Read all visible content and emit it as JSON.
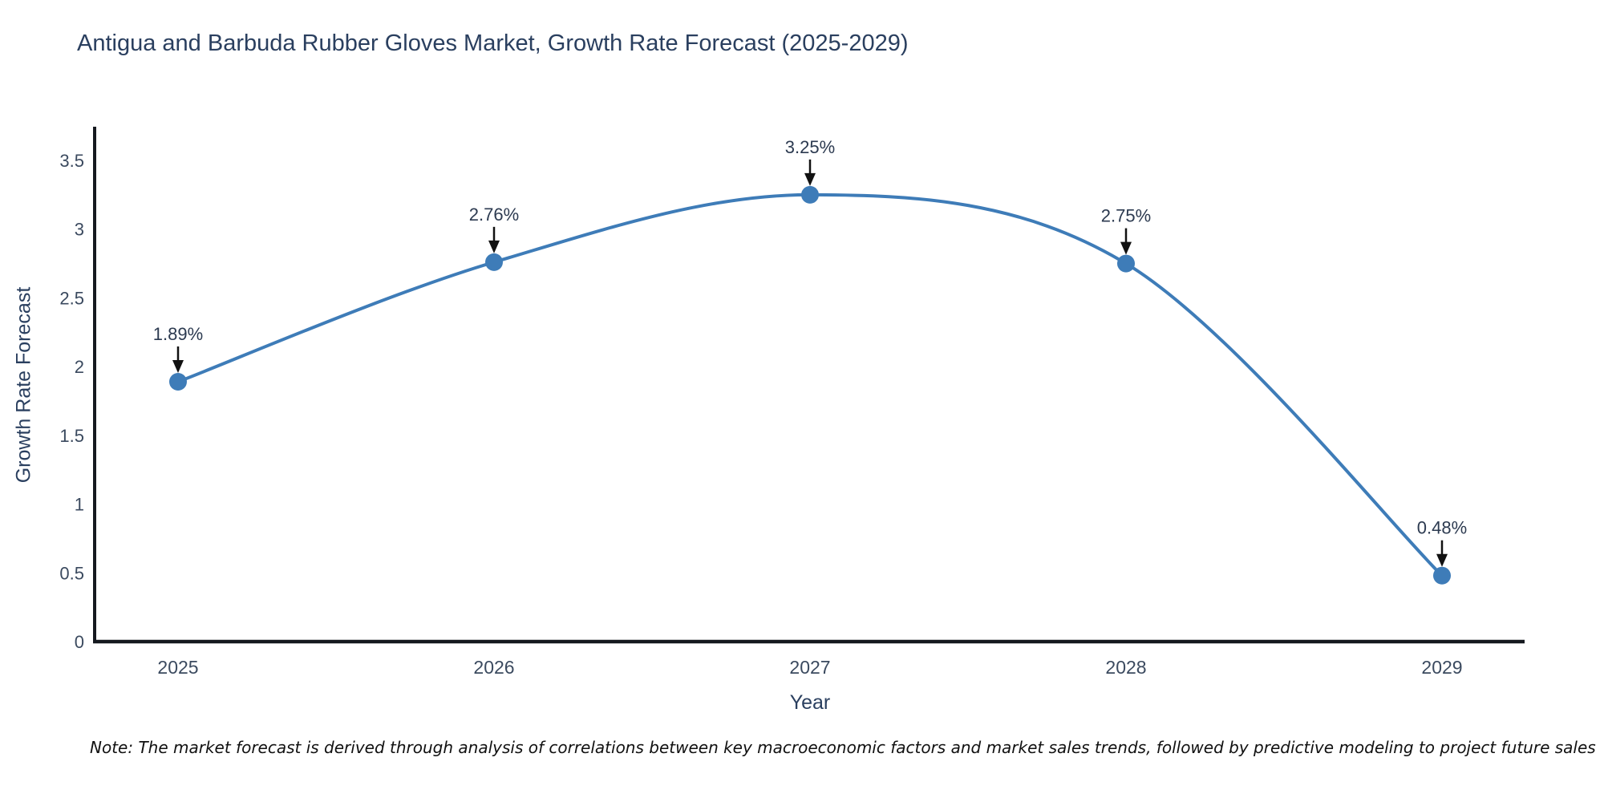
{
  "header": {
    "title": "Antigua and Barbuda Rubber Gloves Market, Growth Rate Forecast (2025-2029)"
  },
  "chart_data": {
    "type": "line",
    "title": "Antigua and Barbuda Rubber Gloves Market, Growth Rate Forecast (2025-2029)",
    "xlabel": "Year",
    "ylabel": "Growth Rate Forecast",
    "categories": [
      "2025",
      "2026",
      "2027",
      "2028",
      "2029"
    ],
    "values": [
      1.89,
      2.76,
      3.25,
      2.75,
      0.48
    ],
    "point_labels": [
      "1.89%",
      "2.76%",
      "3.25%",
      "2.75%",
      "0.48%"
    ],
    "yticks": [
      "0",
      "0.5",
      "1",
      "1.5",
      "2",
      "2.5",
      "3",
      "3.5"
    ],
    "ylim": [
      0,
      3.74
    ],
    "grid": false,
    "legend": "none",
    "line_shape": "spline",
    "annotations_style": "value label with downward black arrow at each point",
    "colors": {
      "line": "#3e7cb8",
      "marker": "#3e7cb8",
      "axis": "#15191f",
      "tick": "#3b4a5f",
      "annotation": "#2c3a50",
      "arrow": "#111111",
      "title": "#2a3f5f",
      "background": "#ffffff"
    }
  },
  "footer": {
    "note": "Note: The market forecast is derived through analysis of correlations between key macroeconomic factors and market sales trends, followed by predictive modeling to project future sales"
  }
}
